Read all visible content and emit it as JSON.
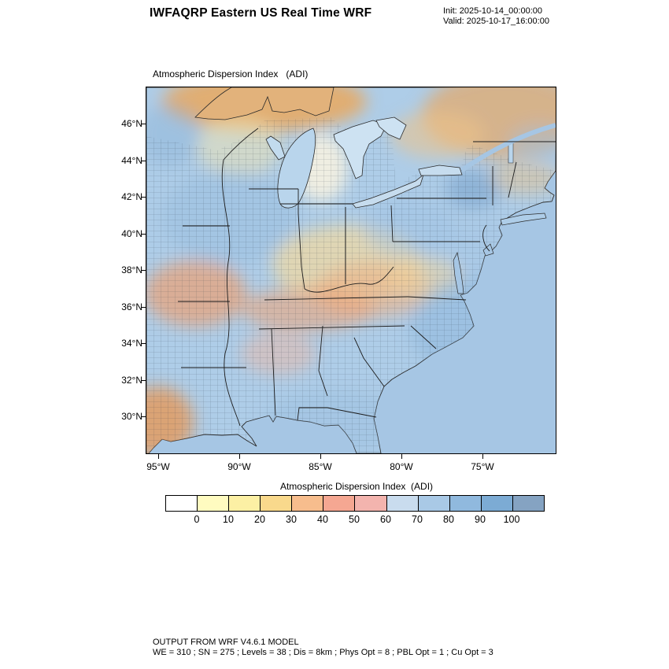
{
  "header": {
    "title": "IWFAQRP Eastern US Real Time WRF",
    "init": "Init: 2025-10-14_00:00:00",
    "valid": "Valid: 2025-10-17_16:00:00"
  },
  "map": {
    "panel_title": "Atmospheric Dispersion Index   (ADI)",
    "lat_ticks": [
      "46°N",
      "44°N",
      "42°N",
      "40°N",
      "38°N",
      "36°N",
      "34°N",
      "32°N",
      "30°N"
    ],
    "lon_ticks": [
      "95°W",
      "90°W",
      "85°W",
      "80°W",
      "75°W"
    ]
  },
  "colorbar": {
    "title": "Atmospheric Dispersion Index  (ADI)",
    "tick_labels": [
      "0",
      "10",
      "20",
      "30",
      "40",
      "50",
      "60",
      "70",
      "80",
      "90",
      "100"
    ],
    "segment_colors": [
      "#ffffff",
      "#fffbc0",
      "#fcf0a4",
      "#f9d98c",
      "#f7bd8d",
      "#f5a792",
      "#f3b4ae",
      "#c9dcee",
      "#a9c9e6",
      "#90b9de",
      "#7cabd4",
      "#85a3c2"
    ]
  },
  "footer": {
    "line1": "OUTPUT FROM WRF V4.6.1 MODEL",
    "line2": "WE = 310 ; SN = 275 ; Levels = 38 ; Dis = 8km ; Phys Opt = 8 ; PBL Opt = 1 ; Cu Opt = 3"
  }
}
